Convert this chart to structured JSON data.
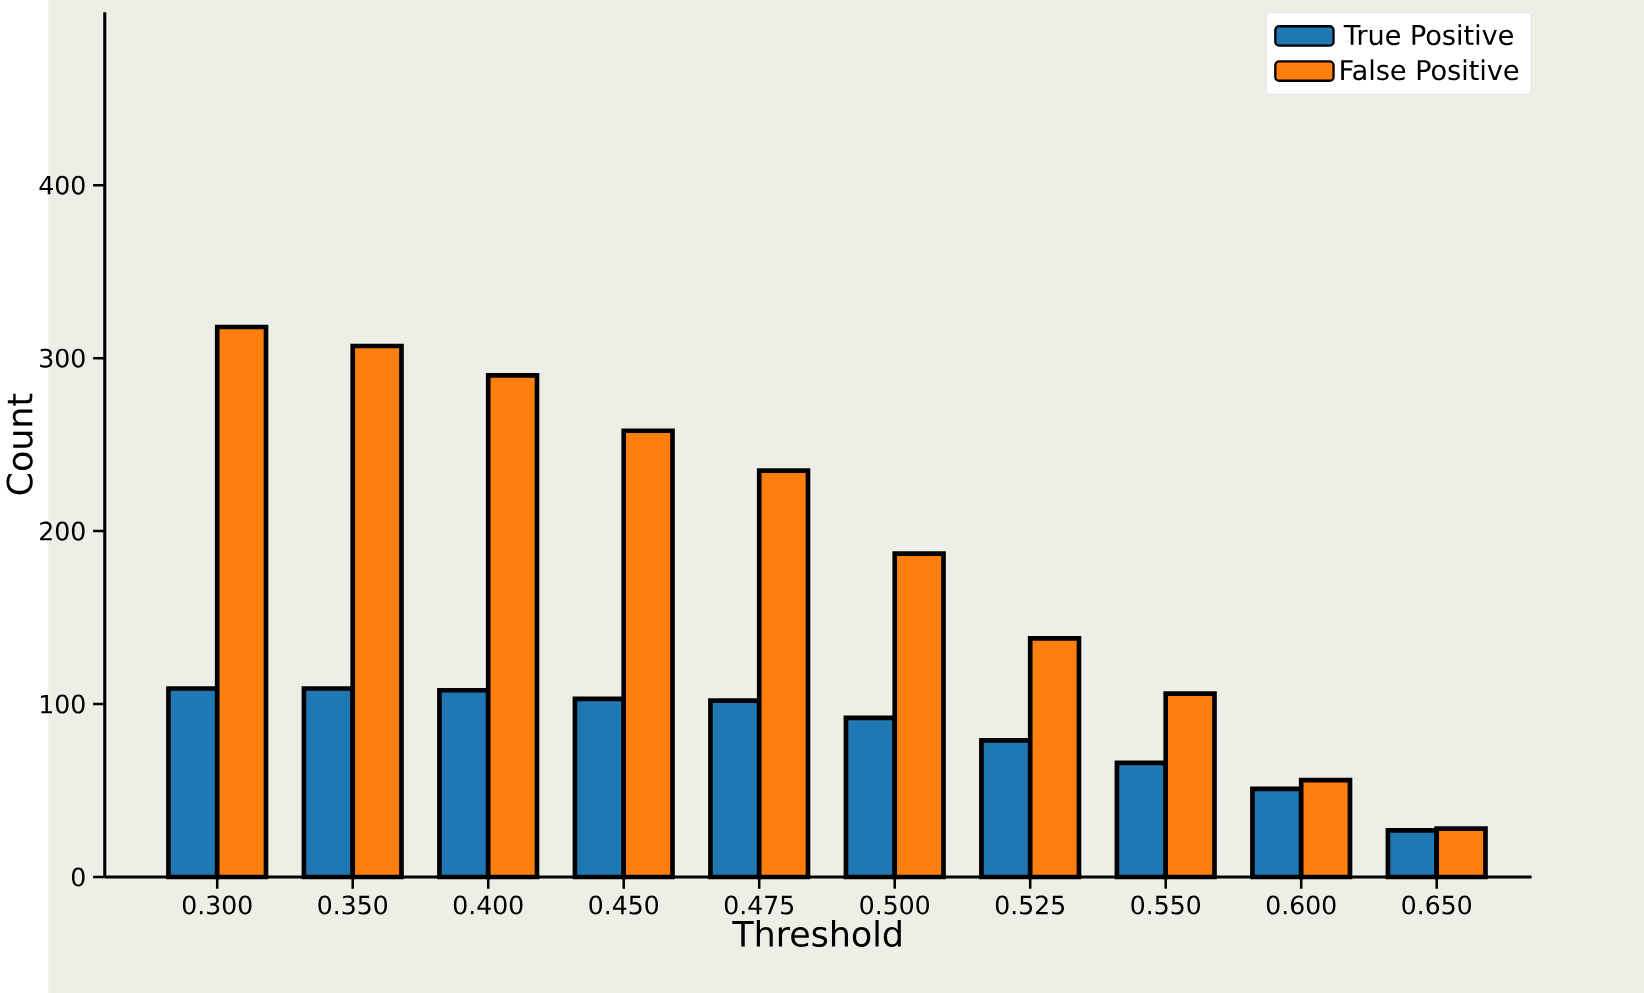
{
  "chart_data": {
    "type": "bar",
    "xlabel": "Threshold",
    "ylabel": "Count",
    "categories": [
      "0.300",
      "0.350",
      "0.400",
      "0.450",
      "0.475",
      "0.500",
      "0.525",
      "0.550",
      "0.600",
      "0.650"
    ],
    "series": [
      {
        "name": "True Positive",
        "color": "#1f77b4",
        "values": [
          109,
          109,
          108,
          103,
          102,
          92,
          79,
          66,
          51,
          27
        ]
      },
      {
        "name": "False Positive",
        "color": "#ff7f0e",
        "values": [
          318,
          307,
          290,
          258,
          235,
          187,
          138,
          106,
          56,
          28
        ]
      }
    ],
    "ylim": [
      0,
      500
    ],
    "yticks": [
      0,
      100,
      200,
      300,
      400
    ],
    "grid": false,
    "legend": "top right"
  }
}
